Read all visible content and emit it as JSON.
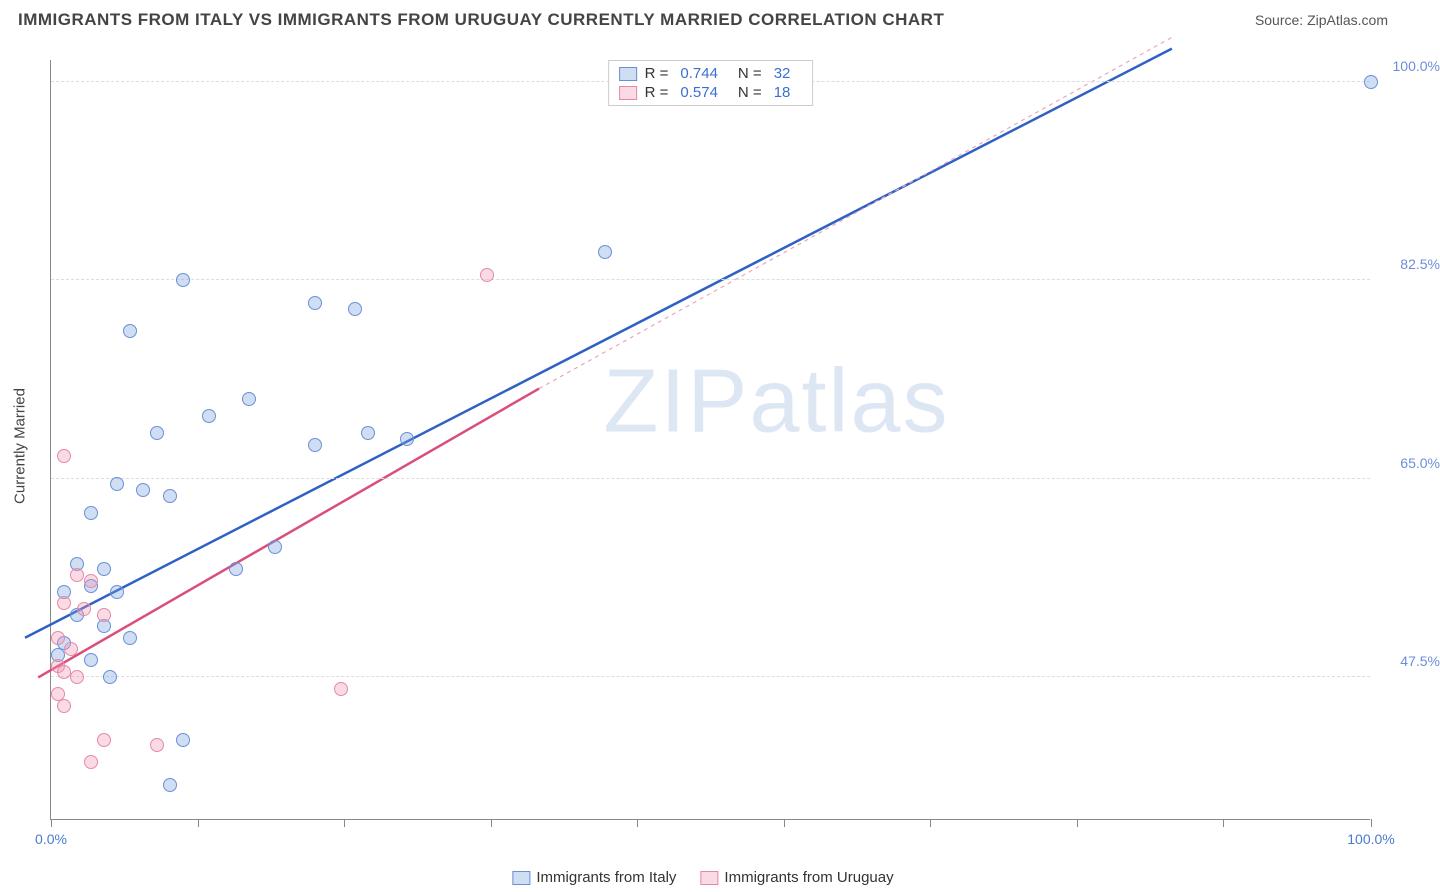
{
  "header": {
    "title": "IMMIGRANTS FROM ITALY VS IMMIGRANTS FROM URUGUAY CURRENTLY MARRIED CORRELATION CHART",
    "source_prefix": "Source: ",
    "source_name": "ZipAtlas.com"
  },
  "chart": {
    "type": "scatter",
    "ylabel": "Currently Married",
    "xlim": [
      0,
      100
    ],
    "ylim": [
      35,
      102
    ],
    "background_color": "#ffffff",
    "grid_color": "#dddddd",
    "axis_color": "#888888",
    "yticks": [
      {
        "value": 47.5,
        "label": "47.5%",
        "color": "#6a8fd8"
      },
      {
        "value": 65.0,
        "label": "65.0%",
        "color": "#6a8fd8"
      },
      {
        "value": 82.5,
        "label": "82.5%",
        "color": "#6a8fd8"
      },
      {
        "value": 100.0,
        "label": "100.0%",
        "color": "#6a8fd8"
      }
    ],
    "xticks_minor": [
      0,
      11.1,
      22.2,
      33.3,
      44.4,
      55.5,
      66.6,
      77.7,
      88.8,
      100
    ],
    "xtick_labels": [
      {
        "value": 0,
        "label": "0.0%",
        "color": "#4a7bd0"
      },
      {
        "value": 100,
        "label": "100.0%",
        "color": "#4a7bd0"
      }
    ],
    "point_radius": 7,
    "point_stroke_width": 1.5,
    "series": [
      {
        "id": "italy",
        "label": "Immigrants from Italy",
        "fill": "rgba(120,160,220,0.35)",
        "stroke": "#6a8fd8",
        "r_value": "0.744",
        "n_value": "32",
        "trendline": {
          "x1": -2,
          "y1": 51,
          "x2": 85,
          "y2": 103,
          "stroke": "#2f60c4",
          "width": 2.5,
          "dash": ""
        },
        "points": [
          {
            "x": 100,
            "y": 100
          },
          {
            "x": 42,
            "y": 85
          },
          {
            "x": 10,
            "y": 82.5
          },
          {
            "x": 20,
            "y": 80.5
          },
          {
            "x": 23,
            "y": 80
          },
          {
            "x": 6,
            "y": 78
          },
          {
            "x": 15,
            "y": 72
          },
          {
            "x": 12,
            "y": 70.5
          },
          {
            "x": 8,
            "y": 69
          },
          {
            "x": 24,
            "y": 69
          },
          {
            "x": 27,
            "y": 68.5
          },
          {
            "x": 20,
            "y": 68
          },
          {
            "x": 5,
            "y": 64.5
          },
          {
            "x": 7,
            "y": 64
          },
          {
            "x": 9,
            "y": 63.5
          },
          {
            "x": 3,
            "y": 62
          },
          {
            "x": 17,
            "y": 59
          },
          {
            "x": 2,
            "y": 57.5
          },
          {
            "x": 4,
            "y": 57
          },
          {
            "x": 14,
            "y": 57
          },
          {
            "x": 1,
            "y": 55
          },
          {
            "x": 3,
            "y": 55.5
          },
          {
            "x": 5,
            "y": 55
          },
          {
            "x": 2,
            "y": 53
          },
          {
            "x": 4,
            "y": 52
          },
          {
            "x": 6,
            "y": 51
          },
          {
            "x": 1,
            "y": 50.5
          },
          {
            "x": 0.5,
            "y": 49.5
          },
          {
            "x": 3,
            "y": 49
          },
          {
            "x": 4.5,
            "y": 47.5
          },
          {
            "x": 10,
            "y": 42
          },
          {
            "x": 9,
            "y": 38
          }
        ]
      },
      {
        "id": "uruguay",
        "label": "Immigrants from Uruguay",
        "fill": "rgba(240,150,180,0.35)",
        "stroke": "#e589a6",
        "r_value": "0.574",
        "n_value": "18",
        "trendline": {
          "x1": -1,
          "y1": 47.5,
          "x2": 37,
          "y2": 73,
          "stroke": "#d94f7a",
          "width": 2.5,
          "dash": ""
        },
        "trend_extrapolate": {
          "x1": 37,
          "y1": 73,
          "x2": 85,
          "y2": 104,
          "stroke": "#e9a8ba",
          "width": 1.2,
          "dash": "4,4"
        },
        "points": [
          {
            "x": 33,
            "y": 83
          },
          {
            "x": 1,
            "y": 67
          },
          {
            "x": 2,
            "y": 56.5
          },
          {
            "x": 3,
            "y": 56
          },
          {
            "x": 1,
            "y": 54
          },
          {
            "x": 2.5,
            "y": 53.5
          },
          {
            "x": 4,
            "y": 53
          },
          {
            "x": 0.5,
            "y": 51
          },
          {
            "x": 1.5,
            "y": 50
          },
          {
            "x": 0.5,
            "y": 48.5
          },
          {
            "x": 1,
            "y": 48
          },
          {
            "x": 2,
            "y": 47.5
          },
          {
            "x": 22,
            "y": 46.5
          },
          {
            "x": 0.5,
            "y": 46
          },
          {
            "x": 1,
            "y": 45
          },
          {
            "x": 4,
            "y": 42
          },
          {
            "x": 8,
            "y": 41.5
          },
          {
            "x": 3,
            "y": 40
          }
        ]
      }
    ],
    "legend_top": {
      "r_label": "R =",
      "n_label": "N ="
    },
    "watermark": {
      "text_a": "ZIP",
      "text_b": "atlas"
    }
  }
}
